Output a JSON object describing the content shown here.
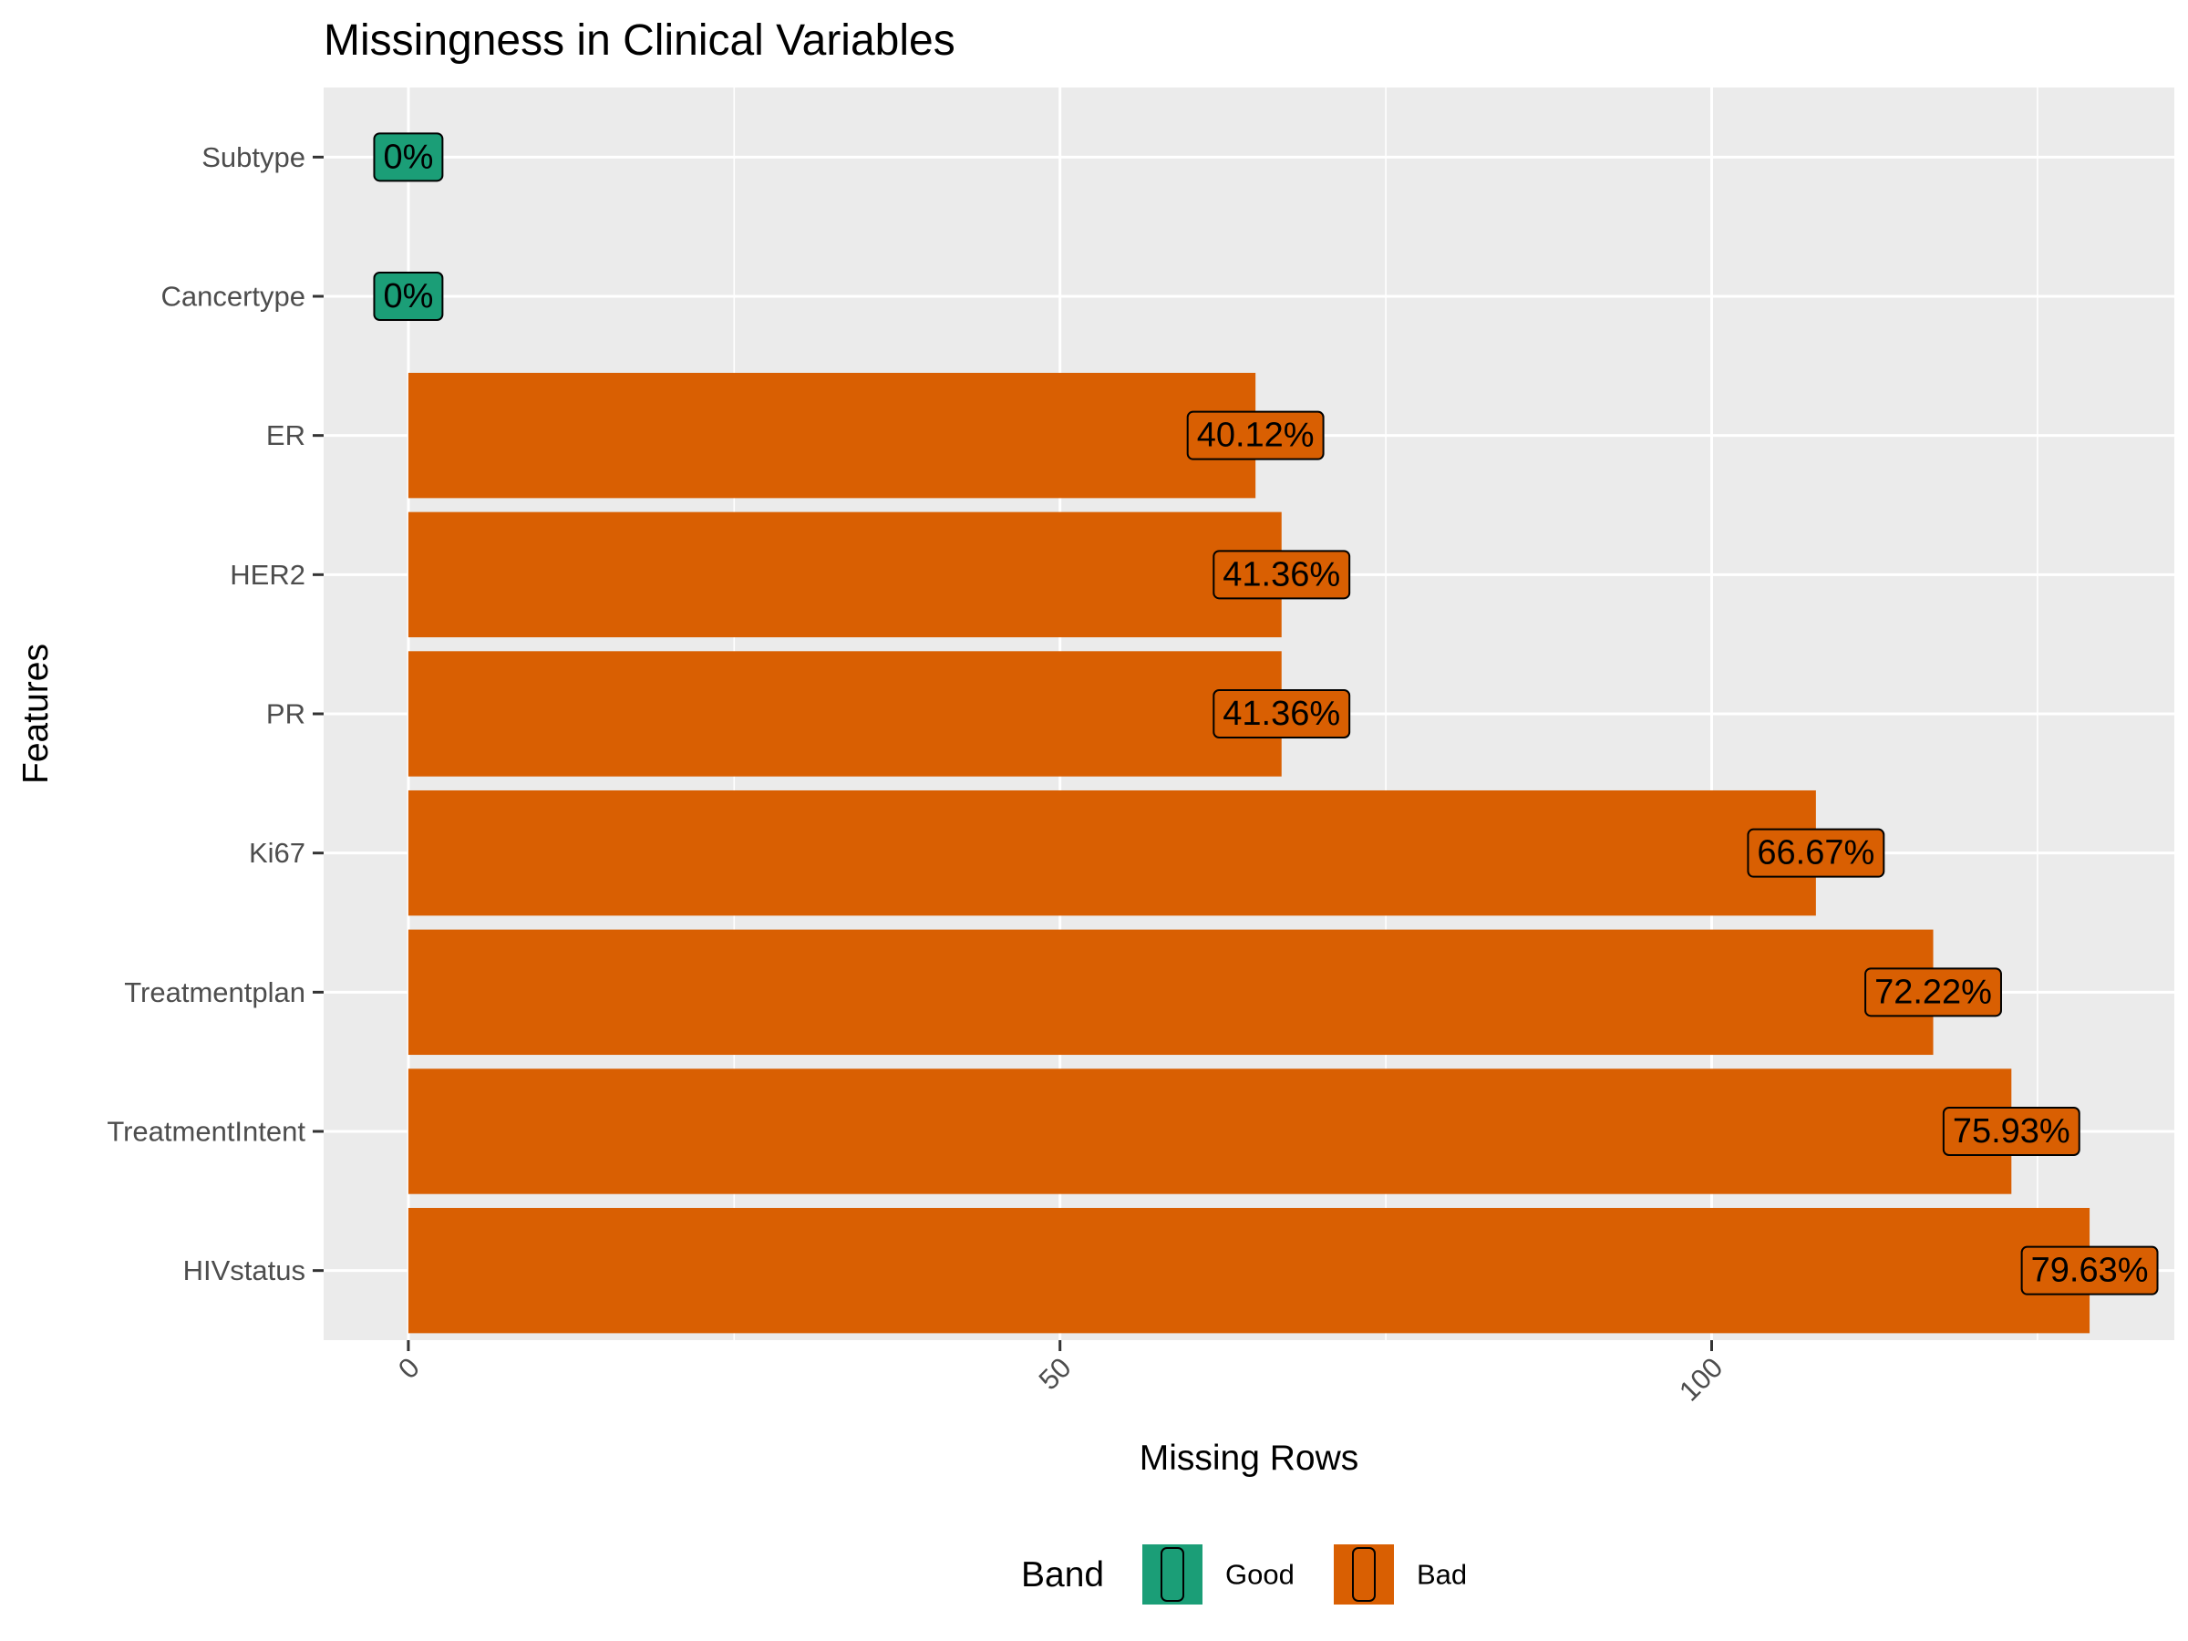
{
  "chart_data": {
    "type": "bar",
    "orientation": "horizontal",
    "title": "Missingness in Clinical Variables",
    "xlabel": "Missing Rows",
    "ylabel": "Features",
    "xlim": [
      -6.5,
      135.5
    ],
    "x_ticks": [
      0,
      50,
      100
    ],
    "grid": true,
    "legend": {
      "title": "Band",
      "position": "bottom",
      "entries": [
        {
          "label": "Good",
          "color": "#1b9e77"
        },
        {
          "label": "Bad",
          "color": "#d95f02"
        }
      ]
    },
    "categories": [
      "Subtype",
      "Cancertype",
      "ER",
      "HER2",
      "PR",
      "Ki67",
      "Treatmentplan",
      "TreatmentIntent",
      "HIVstatus"
    ],
    "values": [
      0,
      0,
      65,
      67,
      67,
      108,
      117,
      123,
      129
    ],
    "labels": [
      "0%",
      "0%",
      "40.12%",
      "41.36%",
      "41.36%",
      "66.67%",
      "72.22%",
      "75.93%",
      "79.63%"
    ],
    "band": [
      "Good",
      "Good",
      "Bad",
      "Bad",
      "Bad",
      "Bad",
      "Bad",
      "Bad",
      "Bad"
    ]
  }
}
